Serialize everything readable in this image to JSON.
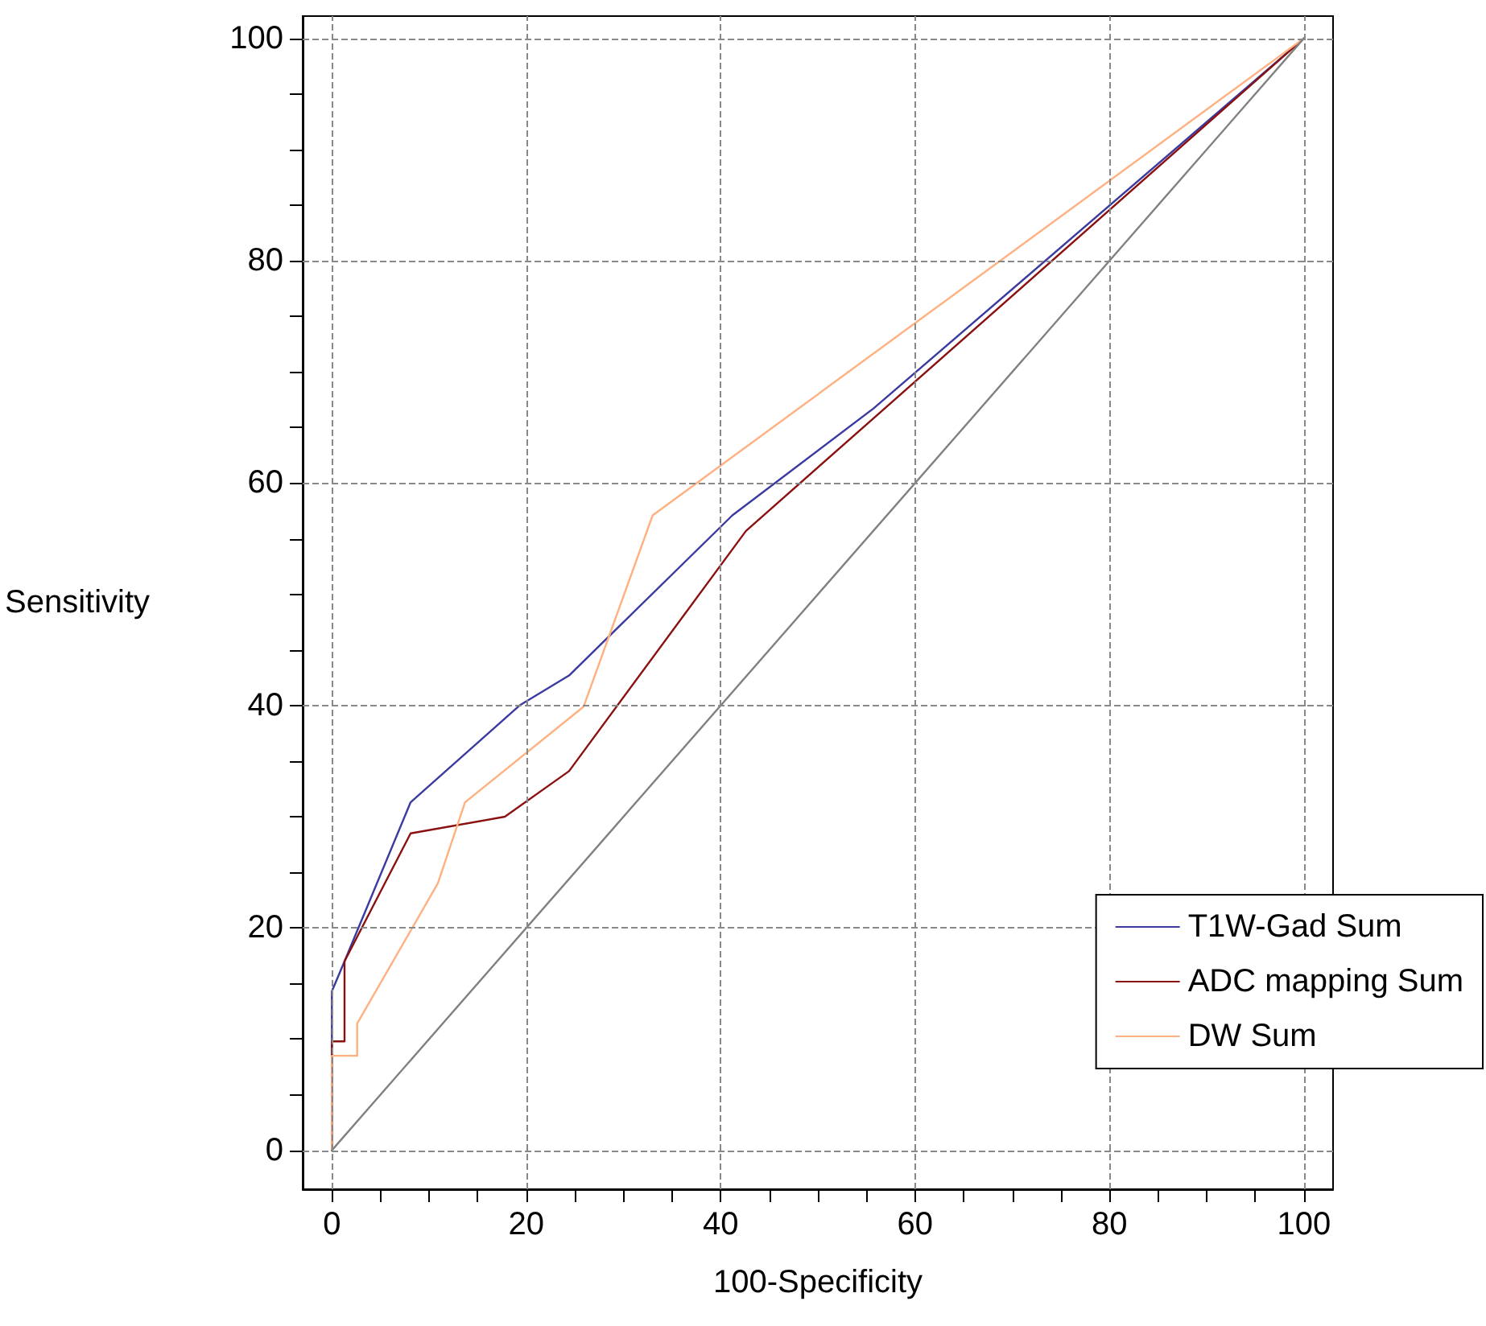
{
  "chart_data": {
    "type": "line",
    "xlabel": "100-Specificity",
    "ylabel": "Sensitivity",
    "xlim": [
      -3,
      103
    ],
    "ylim": [
      -3.5,
      102
    ],
    "xticks": [
      0,
      {
        "value": 5,
        "label": null
      },
      {
        "value": 10,
        "label": null
      },
      {
        "value": 15,
        "label": null
      },
      20,
      {
        "value": 25,
        "label": null
      },
      {
        "value": 30,
        "label": null
      },
      {
        "value": 35,
        "label": null
      },
      40,
      {
        "value": 45,
        "label": null
      },
      {
        "value": 50,
        "label": null
      },
      {
        "value": 55,
        "label": null
      },
      60,
      {
        "value": 65,
        "label": null
      },
      {
        "value": 70,
        "label": null
      },
      {
        "value": 75,
        "label": null
      },
      80,
      {
        "value": 85,
        "label": null
      },
      {
        "value": 90,
        "label": null
      },
      {
        "value": 95,
        "label": null
      },
      100
    ],
    "yticks": [
      0,
      {
        "value": 5,
        "label": null
      },
      {
        "value": 10,
        "label": null
      },
      {
        "value": 15,
        "label": null
      },
      20,
      {
        "value": 25,
        "label": null
      },
      {
        "value": 30,
        "label": null
      },
      {
        "value": 35,
        "label": null
      },
      40,
      {
        "value": 45,
        "label": null
      },
      {
        "value": 50,
        "label": null
      },
      {
        "value": 55,
        "label": null
      },
      60,
      {
        "value": 65,
        "label": null
      },
      {
        "value": 70,
        "label": null
      },
      {
        "value": 75,
        "label": null
      },
      80,
      {
        "value": 85,
        "label": null
      },
      {
        "value": 90,
        "label": null
      },
      {
        "value": 95,
        "label": null
      },
      100
    ],
    "grid": true,
    "legend": "bottom right",
    "marker": "none",
    "line_style": "solid",
    "series": [
      {
        "name": "T1W-Gad Sum",
        "color": "#3a3aa0",
        "x": [
          0,
          0,
          1.3,
          8.1,
          19.3,
          24.4,
          41.2,
          55.7,
          100
        ],
        "values": [
          0,
          14.3,
          17,
          31.3,
          40,
          42.7,
          57.1,
          66.7,
          100
        ]
      },
      {
        "name": "ADC mapping Sum",
        "color": "#8b1010",
        "x": [
          0,
          0,
          1.3,
          1.3,
          8.1,
          17.8,
          24.4,
          42.6,
          100
        ],
        "values": [
          0,
          9.8,
          9.8,
          17,
          28.5,
          30,
          34.1,
          55.7,
          100
        ]
      },
      {
        "name": "DW Sum",
        "color": "#ffb080",
        "x": [
          0,
          0,
          2.6,
          2.6,
          10.9,
          13.7,
          25.9,
          33,
          100
        ],
        "values": [
          0,
          8.5,
          8.5,
          11.4,
          24,
          31.3,
          39.9,
          57.1,
          100
        ]
      },
      {
        "color": "#808080",
        "x": [
          0,
          100
        ],
        "values": [
          0,
          100
        ]
      }
    ]
  }
}
